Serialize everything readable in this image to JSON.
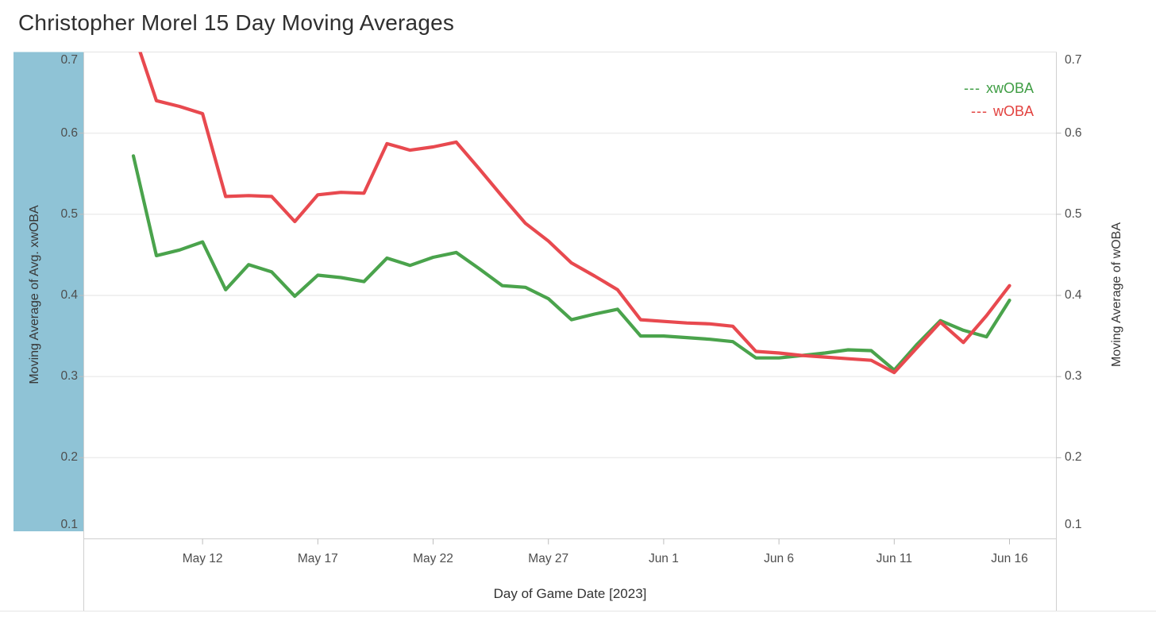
{
  "title": "Christopher Morel 15 Day Moving Averages",
  "legend": {
    "items": [
      {
        "dashes": "---",
        "label": "xwOBA",
        "color": "#3f9d44"
      },
      {
        "dashes": "---",
        "label": "wOBA",
        "color": "#e2423f"
      }
    ]
  },
  "left_axis": {
    "title": "Moving Average of Avg. xwOBA",
    "ticks": [
      0.7,
      0.6,
      0.5,
      0.4,
      0.3,
      0.2,
      0.1
    ],
    "band_color": "#8fc3d6"
  },
  "right_axis": {
    "title": "Moving Average of wOBA",
    "ticks": [
      0.7,
      0.6,
      0.5,
      0.4,
      0.3,
      0.2,
      0.1
    ]
  },
  "x_axis": {
    "title": "Day of Game Date [2023]",
    "tick_labels": [
      "May 12",
      "May 17",
      "May 22",
      "May 27",
      "Jun 1",
      "Jun 6",
      "Jun 11",
      "Jun 16"
    ]
  },
  "chart_data": {
    "type": "line",
    "title": "Christopher Morel 15 Day Moving Averages",
    "xlabel": "Day of Game Date [2023]",
    "ylabel_left": "Moving Average of Avg. xwOBA",
    "ylabel_right": "Moving Average of wOBA",
    "ylim": [
      0.1,
      0.7
    ],
    "grid": true,
    "legend_position": "top-right",
    "x": [
      "May 9",
      "May 10",
      "May 11",
      "May 12",
      "May 13",
      "May 14",
      "May 15",
      "May 16",
      "May 17",
      "May 18",
      "May 19",
      "May 20",
      "May 21",
      "May 22",
      "May 23",
      "May 24",
      "May 25",
      "May 26",
      "May 27",
      "May 28",
      "May 29",
      "May 30",
      "May 31",
      "Jun 1",
      "Jun 2",
      "Jun 3",
      "Jun 4",
      "Jun 5",
      "Jun 6",
      "Jun 7",
      "Jun 8",
      "Jun 9",
      "Jun 10",
      "Jun 11",
      "Jun 12",
      "Jun 13",
      "Jun 14",
      "Jun 15",
      "Jun 16"
    ],
    "series": [
      {
        "name": "xwOBA",
        "axis": "left",
        "color": "#4aa34c",
        "style": "solid",
        "values": [
          0.572,
          0.449,
          0.456,
          0.466,
          0.407,
          0.438,
          0.429,
          0.399,
          0.425,
          0.422,
          0.417,
          0.446,
          0.437,
          0.447,
          0.453,
          0.433,
          0.412,
          0.41,
          0.396,
          0.37,
          0.377,
          0.383,
          0.35,
          0.35,
          0.348,
          0.346,
          0.343,
          0.323,
          0.323,
          0.326,
          0.329,
          0.333,
          0.332,
          0.308,
          0.34,
          0.369,
          0.357,
          0.349,
          0.394
        ]
      },
      {
        "name": "wOBA",
        "axis": "right",
        "color": "#e8494f",
        "style": "solid",
        "values": [
          0.725,
          0.64,
          0.633,
          0.624,
          0.522,
          0.523,
          0.522,
          0.491,
          0.524,
          0.527,
          0.526,
          0.587,
          0.579,
          0.583,
          0.589,
          0.556,
          0.522,
          0.489,
          0.467,
          0.44,
          0.424,
          0.407,
          0.37,
          0.368,
          0.366,
          0.365,
          0.362,
          0.331,
          0.329,
          0.326,
          0.324,
          0.322,
          0.32,
          0.305,
          0.336,
          0.367,
          0.342,
          0.375,
          0.412
        ]
      }
    ]
  }
}
